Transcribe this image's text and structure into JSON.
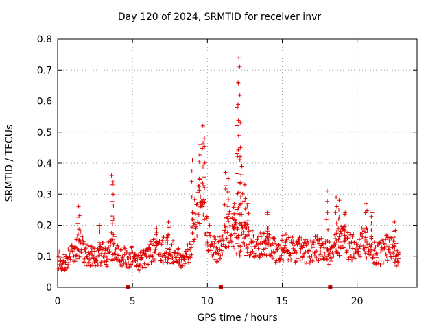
{
  "chart_data": {
    "type": "scatter",
    "title": "Day 120 of 2024, SRMTID for receiver invr",
    "xlabel": "GPS time / hours",
    "ylabel": "SRMTID / TECUs",
    "xlim": [
      0,
      24.0
    ],
    "ylim": [
      0,
      0.8
    ],
    "xticks": [
      0,
      5,
      10,
      15,
      20
    ],
    "yticks": [
      0,
      0.1,
      0.2,
      0.3,
      0.4,
      0.5,
      0.6,
      0.7,
      0.8
    ],
    "grid": true,
    "marker": "+",
    "color": "#e00000",
    "gap_markers_x": [
      4.7,
      10.9,
      18.2
    ],
    "profile": [
      [
        0.0,
        0.09
      ],
      [
        0.4,
        0.08
      ],
      [
        0.8,
        0.1
      ],
      [
        1.2,
        0.11
      ],
      [
        1.5,
        0.14
      ],
      [
        1.8,
        0.11
      ],
      [
        2.2,
        0.1
      ],
      [
        2.6,
        0.09
      ],
      [
        3.0,
        0.11
      ],
      [
        3.3,
        0.1
      ],
      [
        3.6,
        0.13
      ],
      [
        3.9,
        0.12
      ],
      [
        4.3,
        0.1
      ],
      [
        4.7,
        0.09
      ],
      [
        5.0,
        0.1
      ],
      [
        5.4,
        0.08
      ],
      [
        5.8,
        0.09
      ],
      [
        6.2,
        0.11
      ],
      [
        6.6,
        0.13
      ],
      [
        7.0,
        0.12
      ],
      [
        7.4,
        0.12
      ],
      [
        7.8,
        0.11
      ],
      [
        8.2,
        0.09
      ],
      [
        8.5,
        0.1
      ],
      [
        8.8,
        0.12
      ],
      [
        9.1,
        0.2
      ],
      [
        9.3,
        0.24
      ],
      [
        9.6,
        0.27
      ],
      [
        9.8,
        0.24
      ],
      [
        10.0,
        0.17
      ],
      [
        10.3,
        0.14
      ],
      [
        10.6,
        0.12
      ],
      [
        10.9,
        0.13
      ],
      [
        11.2,
        0.17
      ],
      [
        11.5,
        0.19
      ],
      [
        11.8,
        0.17
      ],
      [
        12.1,
        0.15
      ],
      [
        12.4,
        0.16
      ],
      [
        12.8,
        0.14
      ],
      [
        13.2,
        0.13
      ],
      [
        13.6,
        0.13
      ],
      [
        14.0,
        0.13
      ],
      [
        14.4,
        0.12
      ],
      [
        14.8,
        0.12
      ],
      [
        15.2,
        0.13
      ],
      [
        15.6,
        0.12
      ],
      [
        16.0,
        0.12
      ],
      [
        16.4,
        0.12
      ],
      [
        16.8,
        0.11
      ],
      [
        17.2,
        0.13
      ],
      [
        17.6,
        0.12
      ],
      [
        18.0,
        0.11
      ],
      [
        18.4,
        0.12
      ],
      [
        18.8,
        0.15
      ],
      [
        19.2,
        0.14
      ],
      [
        19.6,
        0.13
      ],
      [
        20.0,
        0.12
      ],
      [
        20.4,
        0.16
      ],
      [
        20.8,
        0.13
      ],
      [
        21.2,
        0.11
      ],
      [
        21.6,
        0.11
      ],
      [
        22.0,
        0.13
      ],
      [
        22.4,
        0.12
      ],
      [
        22.8,
        0.09
      ]
    ],
    "peaks": [
      [
        1.4,
        0.26
      ],
      [
        2.8,
        0.2
      ],
      [
        3.6,
        0.36
      ],
      [
        3.7,
        0.34
      ],
      [
        6.6,
        0.19
      ],
      [
        7.4,
        0.21
      ],
      [
        9.0,
        0.41
      ],
      [
        9.5,
        0.46
      ],
      [
        9.7,
        0.52
      ],
      [
        9.8,
        0.48
      ],
      [
        11.2,
        0.37
      ],
      [
        11.4,
        0.35
      ],
      [
        11.8,
        0.27
      ],
      [
        12.0,
        0.58
      ],
      [
        12.05,
        0.66
      ],
      [
        12.1,
        0.74
      ],
      [
        12.15,
        0.71
      ],
      [
        12.2,
        0.45
      ],
      [
        12.3,
        0.39
      ],
      [
        12.5,
        0.33
      ],
      [
        12.7,
        0.27
      ],
      [
        14.0,
        0.24
      ],
      [
        18.0,
        0.31
      ],
      [
        18.6,
        0.29
      ],
      [
        18.8,
        0.28
      ],
      [
        19.2,
        0.24
      ],
      [
        20.6,
        0.27
      ],
      [
        21.0,
        0.24
      ],
      [
        22.5,
        0.21
      ]
    ]
  }
}
